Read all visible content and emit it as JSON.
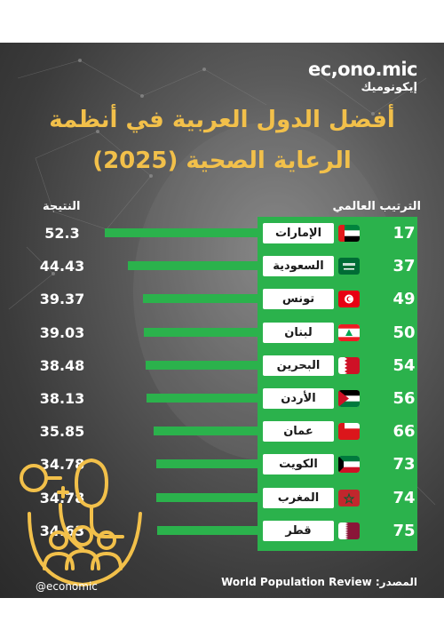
{
  "brand": {
    "name": "ec,ono.mic",
    "name_ar": "إيكونوميك"
  },
  "title_line1": "أفضل الدول العربية في أنظمة",
  "title_line2": "الرعاية الصحية (2025)",
  "header_rank": "الترتيب العالمي",
  "header_score": "النتيجة",
  "handle": "@economic",
  "source_label": "المصدر:",
  "source_name": "World Population Review",
  "colors": {
    "green": "#2bb24c",
    "gold": "#f2c04a",
    "value_text": "#ffffff"
  },
  "chart_data": {
    "type": "bar",
    "title": "أفضل الدول العربية في أنظمة الرعاية الصحية (2025)",
    "rows": [
      {
        "rank": "17",
        "name": "الإمارات",
        "value": 52.3,
        "value_label": "52.3",
        "flag": "uae"
      },
      {
        "rank": "37",
        "name": "السعودية",
        "value": 44.43,
        "value_label": "44.43",
        "flag": "saudi"
      },
      {
        "rank": "49",
        "name": "تونس",
        "value": 39.37,
        "value_label": "39.37",
        "flag": "tunisia"
      },
      {
        "rank": "50",
        "name": "لبنان",
        "value": 39.03,
        "value_label": "39.03",
        "flag": "lebanon"
      },
      {
        "rank": "54",
        "name": "البحرين",
        "value": 38.48,
        "value_label": "38.48",
        "flag": "bahrain"
      },
      {
        "rank": "56",
        "name": "الأردن",
        "value": 38.13,
        "value_label": "38.13",
        "flag": "jordan"
      },
      {
        "rank": "66",
        "name": "عمان",
        "value": 35.85,
        "value_label": "35.85",
        "flag": "oman"
      },
      {
        "rank": "73",
        "name": "الكويت",
        "value": 34.78,
        "value_label": "34.78",
        "flag": "kuwait"
      },
      {
        "rank": "74",
        "name": "المغرب",
        "value": 34.78,
        "value_label": "34.78",
        "flag": "morocco"
      },
      {
        "rank": "75",
        "name": "قطر",
        "value": 34.63,
        "value_label": "34.63",
        "flag": "qatar"
      }
    ]
  }
}
